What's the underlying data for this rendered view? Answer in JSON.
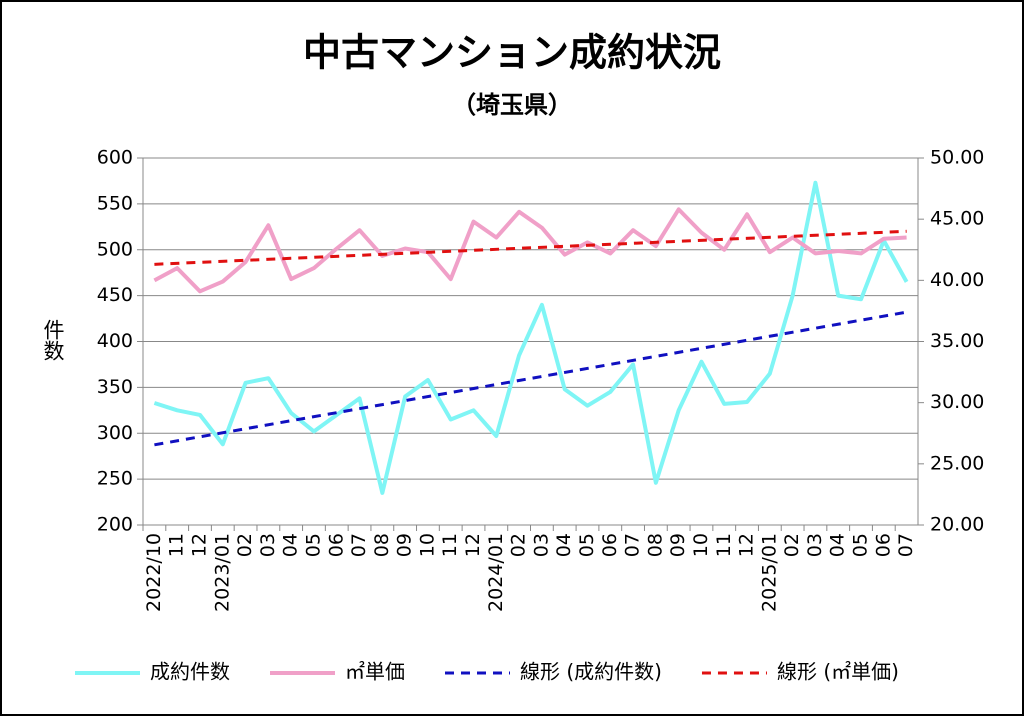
{
  "chart_data": {
    "type": "line",
    "title": "中古マンション成約状況",
    "subtitle": "（埼玉県）",
    "ylabel": "件数",
    "categories": [
      "2022/10",
      "11",
      "12",
      "2023/01",
      "02",
      "03",
      "04",
      "05",
      "06",
      "07",
      "08",
      "09",
      "10",
      "11",
      "12",
      "2024/01",
      "02",
      "03",
      "04",
      "05",
      "06",
      "07",
      "08",
      "09",
      "10",
      "11",
      "12",
      "2025/01",
      "02",
      "03",
      "04",
      "05",
      "06",
      "07"
    ],
    "series": [
      {
        "name": "成約件数",
        "color": "#7ff5f5",
        "values": [
          333,
          325,
          320,
          288,
          355,
          360,
          322,
          302,
          320,
          338,
          235,
          340,
          358,
          315,
          325,
          297,
          385,
          440,
          348,
          330,
          345,
          375,
          246,
          325,
          378,
          332,
          334,
          365,
          450,
          573,
          450,
          446,
          510,
          465
        ]
      },
      {
        "name": "㎡単価",
        "color": "#f0a0c8",
        "axis": "y2",
        "values": [
          40.0,
          41.0,
          39.1,
          39.9,
          41.5,
          44.5,
          40.1,
          41.0,
          42.6,
          44.1,
          42.0,
          42.6,
          42.3,
          40.1,
          44.8,
          43.5,
          45.6,
          44.3,
          42.1,
          43.1,
          42.2,
          44.1,
          42.8,
          45.8,
          43.9,
          42.5,
          45.4,
          42.3,
          43.5,
          42.2,
          42.4,
          42.2,
          43.4,
          43.5
        ]
      }
    ],
    "trendlines": [
      {
        "name": "線形 (成約件数)",
        "color": "#1010c0",
        "series": 0
      },
      {
        "name": "線形 (㎡単価)",
        "color": "#e01010",
        "series": 1
      }
    ],
    "ylim": [
      200,
      600
    ],
    "yticks": [
      200,
      250,
      300,
      350,
      400,
      450,
      500,
      550,
      600
    ],
    "y2lim": [
      20,
      50
    ],
    "y2ticks": [
      {
        "value": 20,
        "label": "20.00"
      },
      {
        "value": 25,
        "label": "25.00"
      },
      {
        "value": 30,
        "label": "30.00"
      },
      {
        "value": 35,
        "label": "35.00"
      },
      {
        "value": 40,
        "label": "40.00"
      },
      {
        "value": 45,
        "label": "45.00"
      },
      {
        "value": 50,
        "label": "50.00"
      }
    ],
    "grid": true,
    "legend": "bottom"
  }
}
